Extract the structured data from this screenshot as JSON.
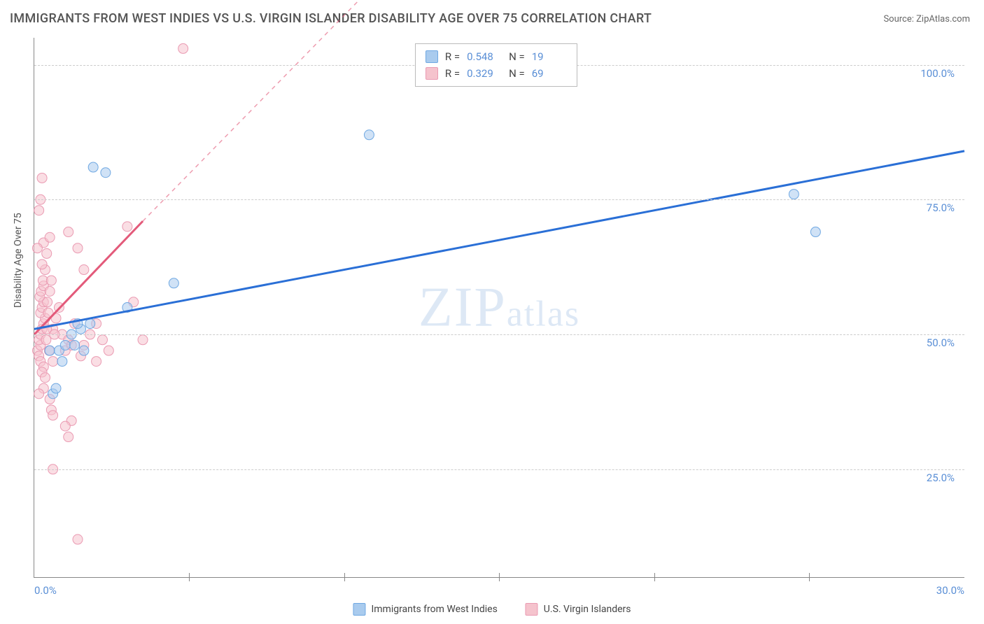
{
  "title": "IMMIGRANTS FROM WEST INDIES VS U.S. VIRGIN ISLANDER DISABILITY AGE OVER 75 CORRELATION CHART",
  "source_label": "Source:",
  "source_name": "ZipAtlas.com",
  "watermark": "ZIPatlas",
  "y_axis_title": "Disability Age Over 75",
  "chart": {
    "type": "scatter",
    "xlim": [
      0,
      30
    ],
    "ylim": [
      5,
      105
    ],
    "x_ticks": [
      0,
      30
    ],
    "x_tick_labels": [
      "0.0%",
      "30.0%"
    ],
    "y_ticks": [
      25,
      50,
      75,
      100
    ],
    "y_tick_labels": [
      "25.0%",
      "50.0%",
      "75.0%",
      "100.0%"
    ],
    "x_minor_ticks": [
      5,
      10,
      15,
      20,
      25
    ],
    "background_color": "#ffffff",
    "grid_color": "#cccccc",
    "axis_color": "#888888",
    "tick_label_color": "#5a8fd6",
    "marker_radius": 7,
    "marker_opacity": 0.55,
    "series": [
      {
        "name": "Immigrants from West Indies",
        "color_fill": "#a9cbee",
        "color_stroke": "#6fa8e2",
        "trend_color": "#2a6fd6",
        "trend_width": 3,
        "points": [
          [
            0.5,
            47
          ],
          [
            0.6,
            39
          ],
          [
            0.8,
            47
          ],
          [
            1.0,
            48
          ],
          [
            1.2,
            50
          ],
          [
            1.3,
            48
          ],
          [
            1.5,
            51
          ],
          [
            1.6,
            47
          ],
          [
            1.8,
            52
          ],
          [
            1.9,
            81
          ],
          [
            2.3,
            80
          ],
          [
            3.0,
            55
          ],
          [
            4.5,
            59.5
          ],
          [
            10.8,
            87
          ],
          [
            24.5,
            76
          ],
          [
            25.2,
            69
          ],
          [
            0.9,
            45
          ],
          [
            0.7,
            40
          ],
          [
            1.4,
            52
          ]
        ],
        "trend_start": [
          0,
          51
        ],
        "trend_end": [
          30,
          84
        ],
        "R": "0.548",
        "N": "19"
      },
      {
        "name": "U.S. Virgin Islanders",
        "color_fill": "#f5c3cd",
        "color_stroke": "#ea9ab2",
        "trend_color": "#e35a7a",
        "trend_width": 3,
        "points": [
          [
            0.1,
            47
          ],
          [
            0.2,
            48
          ],
          [
            0.15,
            49
          ],
          [
            0.2,
            50
          ],
          [
            0.25,
            51
          ],
          [
            0.3,
            52
          ],
          [
            0.35,
            53
          ],
          [
            0.2,
            54
          ],
          [
            0.25,
            55
          ],
          [
            0.3,
            56
          ],
          [
            0.18,
            57
          ],
          [
            0.22,
            58
          ],
          [
            0.3,
            59
          ],
          [
            0.28,
            60
          ],
          [
            0.35,
            62
          ],
          [
            0.25,
            63
          ],
          [
            0.4,
            65
          ],
          [
            0.3,
            67
          ],
          [
            0.5,
            68
          ],
          [
            0.15,
            46
          ],
          [
            0.2,
            45
          ],
          [
            0.3,
            44
          ],
          [
            0.25,
            43
          ],
          [
            0.35,
            42
          ],
          [
            0.3,
            40
          ],
          [
            0.15,
            39
          ],
          [
            0.5,
            38
          ],
          [
            0.55,
            36
          ],
          [
            0.6,
            35
          ],
          [
            1.2,
            34
          ],
          [
            1.0,
            33
          ],
          [
            1.1,
            31
          ],
          [
            0.6,
            25
          ],
          [
            1.4,
            12
          ],
          [
            0.15,
            73
          ],
          [
            0.2,
            75
          ],
          [
            0.25,
            79
          ],
          [
            0.1,
            66
          ],
          [
            0.6,
            51
          ],
          [
            0.7,
            53
          ],
          [
            0.8,
            55
          ],
          [
            0.9,
            50
          ],
          [
            1.0,
            47
          ],
          [
            1.1,
            49
          ],
          [
            1.2,
            48
          ],
          [
            1.3,
            52
          ],
          [
            1.5,
            46
          ],
          [
            1.6,
            48
          ],
          [
            1.8,
            50
          ],
          [
            2.0,
            45
          ],
          [
            1.1,
            69
          ],
          [
            1.4,
            66
          ],
          [
            1.6,
            62
          ],
          [
            2.2,
            49
          ],
          [
            2.4,
            47
          ],
          [
            2.0,
            52
          ],
          [
            3.2,
            56
          ],
          [
            3.0,
            70
          ],
          [
            3.5,
            49
          ],
          [
            4.8,
            103
          ],
          [
            0.4,
            51
          ],
          [
            0.45,
            54
          ],
          [
            0.38,
            49
          ],
          [
            0.42,
            56
          ],
          [
            0.55,
            60
          ],
          [
            0.5,
            58
          ],
          [
            0.48,
            47
          ],
          [
            0.6,
            45
          ],
          [
            0.65,
            50
          ]
        ],
        "trend_solid_start": [
          0,
          50
        ],
        "trend_solid_end": [
          3.5,
          71
        ],
        "trend_dash_start": [
          3.5,
          71
        ],
        "trend_dash_end": [
          11.5,
          118
        ],
        "R": "0.329",
        "N": "69"
      }
    ]
  },
  "stat_box": {
    "r_label": "R =",
    "n_label": "N ="
  },
  "legend": {
    "series1": "Immigrants from West Indies",
    "series2": "U.S. Virgin Islanders"
  }
}
